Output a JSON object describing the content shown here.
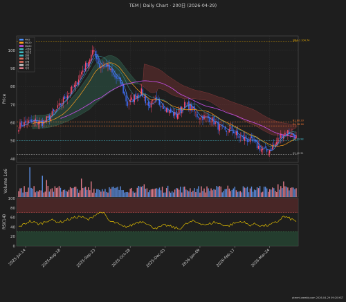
{
  "title": "TEM  |  Daily Chart · 200日  (2026-04-29)",
  "watermark": "ptmmt.weebly.com 2026-04-29 09:20 KST",
  "colors": {
    "bg": "#1e1e1e",
    "panel": "#1e1e1e",
    "grid": "#3a3a3a",
    "up": "#ff4d6d",
    "down": "#3f6fff",
    "ma5": "#4a90ff",
    "ma20": "#ff9f1c",
    "ma60": "#c04de0",
    "cloud_bull": "#2e5a48",
    "cloud_bear": "#6a3030",
    "rsi": "#e5c100",
    "vol_up": "#e07b8a",
    "vol_down": "#5b8de0"
  },
  "chart_data": [
    {
      "type": "candlestick",
      "panel": "price",
      "ylabel": "Price",
      "ylim": [
        38,
        108
      ],
      "yticks": [
        40,
        50,
        60,
        70,
        80,
        90,
        100
      ],
      "xticklabels": [
        "2025-Jul-14",
        "2025-Aug-18",
        "2025-Sep-23",
        "2025-Oct-28",
        "2025-Dec-03",
        "2026-Jan-09",
        "2026-Feb-17",
        "2026-Mar-24"
      ],
      "xtick_index": [
        5,
        30,
        55,
        80,
        105,
        130,
        155,
        180
      ],
      "n_days": 200,
      "legend": [
        "MA5",
        "MA20",
        "MA60",
        "구름대",
        "기준선",
        "전환",
        "선행",
        "후행",
        "저항",
        "지지"
      ],
      "anchor_closes": [
        [
          0,
          58
        ],
        [
          6,
          60
        ],
        [
          12,
          61
        ],
        [
          17,
          60
        ],
        [
          22,
          63
        ],
        [
          28,
          68
        ],
        [
          34,
          75
        ],
        [
          40,
          80
        ],
        [
          45,
          88
        ],
        [
          50,
          94
        ],
        [
          54,
          100
        ],
        [
          58,
          91
        ],
        [
          63,
          92
        ],
        [
          68,
          86
        ],
        [
          73,
          82
        ],
        [
          78,
          70
        ],
        [
          83,
          74
        ],
        [
          88,
          77
        ],
        [
          93,
          69
        ],
        [
          98,
          72
        ],
        [
          103,
          70
        ],
        [
          108,
          66
        ],
        [
          113,
          64
        ],
        [
          118,
          70
        ],
        [
          123,
          69
        ],
        [
          128,
          64
        ],
        [
          133,
          63
        ],
        [
          138,
          62
        ],
        [
          143,
          58
        ],
        [
          148,
          55
        ],
        [
          153,
          56
        ],
        [
          158,
          52
        ],
        [
          163,
          51
        ],
        [
          168,
          49
        ],
        [
          173,
          46
        ],
        [
          178,
          44
        ],
        [
          183,
          47
        ],
        [
          188,
          53
        ],
        [
          193,
          55
        ],
        [
          199,
          52
        ]
      ],
      "hlines": [
        {
          "label": "SMA-1 104.74",
          "value": 104.7,
          "color": "#f0b000"
        },
        {
          "label": "R1 60.33",
          "value": 60.3,
          "color": "#ff7a30"
        },
        {
          "label": "R2 58.16",
          "value": 58.2,
          "color": "#ff7a30"
        },
        {
          "label": "S1 49.98",
          "value": 50.0,
          "color": "#44c0d0"
        },
        {
          "label": "S2 42.31",
          "value": 42.3,
          "color": "#c0c0c0"
        }
      ]
    },
    {
      "type": "bar",
      "panel": "volume",
      "ylabel": "Volume  1e6",
      "ylim": [
        0,
        23
      ],
      "peaks": [
        [
          8,
          21
        ],
        [
          17,
          15
        ],
        [
          20,
          12
        ],
        [
          45,
          13
        ],
        [
          52,
          11
        ],
        [
          90,
          9
        ],
        [
          150,
          8
        ],
        [
          186,
          9
        ],
        [
          190,
          11
        ]
      ]
    },
    {
      "type": "line",
      "panel": "rsi",
      "ylabel": "RSI(14)",
      "ylim": [
        0,
        100
      ],
      "yticks": [
        0,
        20,
        40,
        60,
        80,
        100
      ],
      "overbought": 70,
      "oversold": 30,
      "anchors": [
        [
          0,
          40
        ],
        [
          8,
          52
        ],
        [
          15,
          46
        ],
        [
          22,
          55
        ],
        [
          30,
          50
        ],
        [
          38,
          58
        ],
        [
          44,
          62
        ],
        [
          50,
          55
        ],
        [
          55,
          66
        ],
        [
          60,
          72
        ],
        [
          65,
          52
        ],
        [
          70,
          48
        ],
        [
          75,
          40
        ],
        [
          80,
          42
        ],
        [
          85,
          50
        ],
        [
          90,
          52
        ],
        [
          95,
          40
        ],
        [
          100,
          38
        ],
        [
          105,
          44
        ],
        [
          110,
          40
        ],
        [
          115,
          36
        ],
        [
          120,
          46
        ],
        [
          125,
          52
        ],
        [
          130,
          48
        ],
        [
          135,
          44
        ],
        [
          140,
          50
        ],
        [
          145,
          46
        ],
        [
          150,
          42
        ],
        [
          155,
          48
        ],
        [
          160,
          52
        ],
        [
          165,
          44
        ],
        [
          170,
          46
        ],
        [
          175,
          42
        ],
        [
          180,
          44
        ],
        [
          185,
          50
        ],
        [
          190,
          62
        ],
        [
          194,
          58
        ],
        [
          199,
          52
        ]
      ]
    }
  ]
}
